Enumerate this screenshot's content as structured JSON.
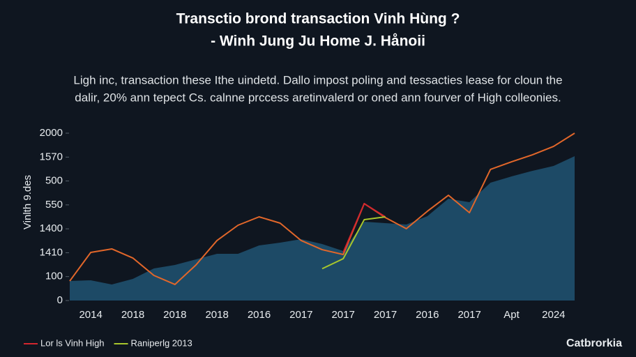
{
  "chart_data": {
    "type": "line",
    "title": [
      "Transctio brond transaction Vinh Hùng ?",
      "- Winh Jung Ju Home J. Hånoii"
    ],
    "subtitle": [
      "Ligh inc, transaction these Ithe uindetd. Dallo impost poling and tessacties lease for cloun the",
      "dalir, 20% ann tepect Cs. calnne prccess aretinvalerd or oned ann fourver of High colleonies."
    ],
    "y_label": "Vinlth 9.des",
    "brand": "Catbrorkia",
    "categories": [
      null,
      "2014",
      null,
      "2018",
      null,
      "2018",
      null,
      "2018",
      null,
      "2016",
      null,
      "2017",
      null,
      "2017",
      null,
      "2017",
      null,
      "2016",
      null,
      "2017",
      null,
      "Apt",
      null,
      "2024",
      null
    ],
    "ylim": [
      0,
      2000
    ],
    "yticks": [
      0,
      {
        "value": 286,
        "label": "100"
      },
      {
        "value": 571,
        "label": "1410"
      },
      {
        "value": 857,
        "label": "1400"
      },
      {
        "value": 1143,
        "label": "550"
      },
      {
        "value": 1429,
        "label": "500"
      },
      {
        "value": 1714,
        "label": "1570"
      },
      2000
    ],
    "legend": "bottom-left",
    "series": [
      {
        "color": "#1d4a66",
        "area": true,
        "values": [
          233,
          242,
          192,
          258,
          383,
          425,
          492,
          558,
          558,
          658,
          692,
          733,
          675,
          592,
          942,
          925,
          908,
          1008,
          1217,
          1175,
          1408,
          1483,
          1550,
          1608,
          1725
        ]
      },
      {
        "color": "#e2672a",
        "values": [
          233,
          575,
          617,
          508,
          300,
          192,
          425,
          717,
          900,
          1000,
          925,
          717,
          608,
          550,
          1158,
          992,
          858,
          1067,
          1258,
          1050,
          1567,
          1658,
          1742,
          1842,
          2000
        ]
      },
      {
        "name": "Lor ls Vinh High",
        "color": "#d3262e",
        "values": [
          null,
          null,
          null,
          null,
          null,
          null,
          null,
          null,
          null,
          null,
          null,
          null,
          null,
          575,
          1158,
          1000,
          null,
          null,
          null,
          null,
          null,
          null,
          null,
          null,
          null
        ]
      },
      {
        "name": "Raniperlg 2013",
        "color": "#a8c62c",
        "values": [
          null,
          null,
          null,
          null,
          null,
          null,
          null,
          null,
          null,
          null,
          null,
          null,
          380,
          500,
          967,
          1000,
          null,
          null,
          null,
          null,
          null,
          null,
          null,
          null,
          null
        ]
      }
    ]
  }
}
